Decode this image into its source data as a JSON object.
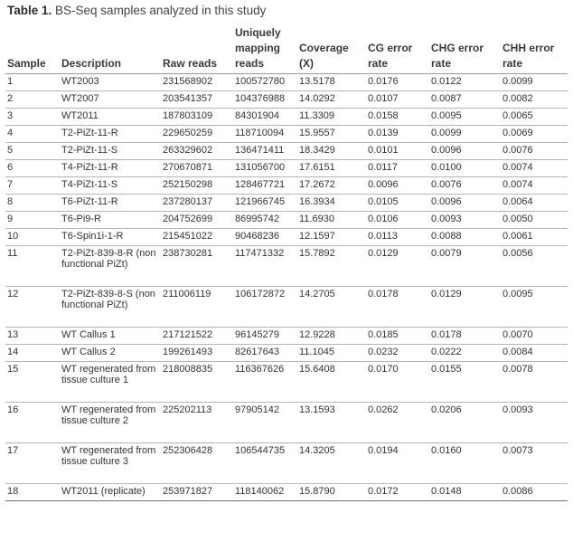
{
  "caption": {
    "label": "Table 1.",
    "text": " BS-Seq samples analyzed in this study"
  },
  "table": {
    "headers": [
      [
        "Sample"
      ],
      [
        "Description"
      ],
      [
        "Raw reads"
      ],
      [
        "Uniquely",
        "mapping",
        "reads"
      ],
      [
        "Coverage",
        "(X)"
      ],
      [
        "CG error",
        "rate"
      ],
      [
        "CHG error",
        "rate"
      ],
      [
        "CHH error",
        "rate"
      ]
    ],
    "rows": [
      {
        "sample": "1",
        "description": "WT2003",
        "raw_reads": "231568902",
        "unique_reads": "100572780",
        "coverage": "13.5178",
        "cg": "0.0176",
        "chg": "0.0122",
        "chh": "0.0099"
      },
      {
        "sample": "2",
        "description": "WT2007",
        "raw_reads": "203541357",
        "unique_reads": "104376988",
        "coverage": "14.0292",
        "cg": "0.0107",
        "chg": "0.0087",
        "chh": "0.0082"
      },
      {
        "sample": "3",
        "description": "WT2011",
        "raw_reads": "187803109",
        "unique_reads": "84301904",
        "coverage": "11.3309",
        "cg": "0.0158",
        "chg": "0.0095",
        "chh": "0.0065"
      },
      {
        "sample": "4",
        "description": "T2-PiZt-11-R",
        "raw_reads": "229650259",
        "unique_reads": "118710094",
        "coverage": "15.9557",
        "cg": "0.0139",
        "chg": "0.0099",
        "chh": "0.0069"
      },
      {
        "sample": "5",
        "description": "T2-PiZt-11-S",
        "raw_reads": "263329602",
        "unique_reads": "136471411",
        "coverage": "18.3429",
        "cg": "0.0101",
        "chg": "0.0096",
        "chh": "0.0076"
      },
      {
        "sample": "6",
        "description": "T4-PiZt-11-R",
        "raw_reads": "270670871",
        "unique_reads": "131056700",
        "coverage": "17.6151",
        "cg": "0.0117",
        "chg": "0.0100",
        "chh": "0.0074"
      },
      {
        "sample": "7",
        "description": "T4-PiZt-11-S",
        "raw_reads": "252150298",
        "unique_reads": "128467721",
        "coverage": "17.2672",
        "cg": "0.0096",
        "chg": "0.0076",
        "chh": "0.0074"
      },
      {
        "sample": "8",
        "description": "T6-PiZt-11-R",
        "raw_reads": "237280137",
        "unique_reads": "121966745",
        "coverage": "16.3934",
        "cg": "0.0105",
        "chg": "0.0096",
        "chh": "0.0064"
      },
      {
        "sample": "9",
        "description": "T6-Pi9-R",
        "raw_reads": "204752699",
        "unique_reads": "86995742",
        "coverage": "11.6930",
        "cg": "0.0106",
        "chg": "0.0093",
        "chh": "0.0050"
      },
      {
        "sample": "10",
        "description": "T6-Spin1i-1-R",
        "raw_reads": "215451022",
        "unique_reads": "90468236",
        "coverage": "12.1597",
        "cg": "0.0113",
        "chg": "0.0088",
        "chh": "0.0061"
      },
      {
        "sample": "11",
        "description": "T2-PiZt-839-8-R (non functional PiZt)",
        "raw_reads": "238730281",
        "unique_reads": "117471332",
        "coverage": "15.7892",
        "cg": "0.0129",
        "chg": "0.0079",
        "chh": "0.0056"
      },
      {
        "sample": "12",
        "description": "T2-PiZt-839-8-S (non functional PiZt)",
        "raw_reads": "211006119",
        "unique_reads": "106172872",
        "coverage": "14.2705",
        "cg": "0.0178",
        "chg": "0.0129",
        "chh": "0.0095"
      },
      {
        "sample": "13",
        "description": "WT Callus 1",
        "raw_reads": "217121522",
        "unique_reads": "96145279",
        "coverage": "12.9228",
        "cg": "0.0185",
        "chg": "0.0178",
        "chh": "0.0070"
      },
      {
        "sample": "14",
        "description": "WT Callus 2",
        "raw_reads": "199261493",
        "unique_reads": "82617643",
        "coverage": "11.1045",
        "cg": "0.0232",
        "chg": "0.0222",
        "chh": "0.0084"
      },
      {
        "sample": "15",
        "description": "WT regenerated from tissue culture 1",
        "raw_reads": "218008835",
        "unique_reads": "116367626",
        "coverage": "15.6408",
        "cg": "0.0170",
        "chg": "0.0155",
        "chh": "0.0078"
      },
      {
        "sample": "16",
        "description": "WT regenerated from tissue culture 2",
        "raw_reads": "225202113",
        "unique_reads": "97905142",
        "coverage": "13.1593",
        "cg": "0.0262",
        "chg": "0.0206",
        "chh": "0.0093"
      },
      {
        "sample": "17",
        "description": "WT regenerated from tissue culture 3",
        "raw_reads": "252306428",
        "unique_reads": "106544735",
        "coverage": "14.3205",
        "cg": "0.0194",
        "chg": "0.0160",
        "chh": "0.0073"
      },
      {
        "sample": "18",
        "description": "WT2011 (replicate)",
        "raw_reads": "253971827",
        "unique_reads": "118140062",
        "coverage": "15.8790",
        "cg": "0.0172",
        "chg": "0.0148",
        "chh": "0.0086"
      }
    ]
  }
}
